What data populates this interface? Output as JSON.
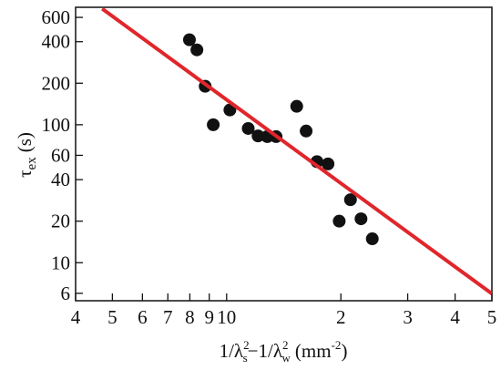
{
  "chart_data": {
    "type": "scatter",
    "xlog": true,
    "ylog": true,
    "xlim": [
      4,
      50
    ],
    "ylim": [
      5.3,
      710
    ],
    "xticks": [
      4,
      5,
      6,
      7,
      8,
      9,
      10,
      {
        "value": 20,
        "label": "2"
      },
      {
        "value": 30,
        "label": "3"
      },
      {
        "value": 40,
        "label": "4"
      },
      {
        "value": 50,
        "label": "5"
      }
    ],
    "yticks": [
      6,
      10,
      20,
      40,
      60,
      100,
      200,
      400,
      600
    ],
    "y_label": [
      "τ",
      "ex",
      "(s)"
    ],
    "x_label": [
      "1/λ",
      "2",
      "s",
      "−1/λ",
      "2",
      "w",
      "(mm",
      "-2",
      ")"
    ],
    "series": [
      {
        "color": "#111111",
        "x": [
          7.98,
          8.35,
          8.78,
          9.22,
          10.2,
          11.4,
          12.1,
          12.8,
          13.5,
          15.3,
          16.2,
          17.3,
          18.5,
          19.8,
          21.2,
          22.6,
          24.2
        ],
        "values": [
          413,
          349,
          190,
          100,
          128,
          94,
          83,
          82,
          82,
          136,
          90,
          54,
          52,
          20,
          28.6,
          20.8,
          14.9
        ]
      },
      {
        "type": "line",
        "color": "#e0262b",
        "x": [
          4.7,
          50
        ],
        "values": [
          693,
          5.96
        ]
      }
    ]
  }
}
